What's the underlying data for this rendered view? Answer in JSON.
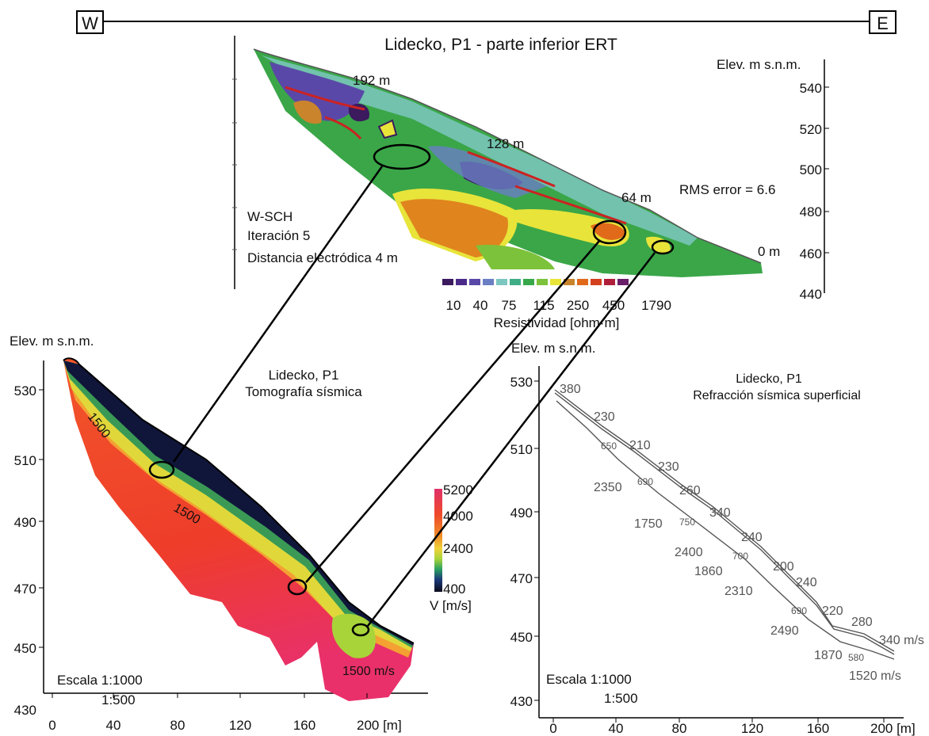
{
  "orientation": {
    "west": "W",
    "east": "E"
  },
  "ert": {
    "title": "Lidecko, P1 - parte inferior   ERT",
    "elev_label": "Elev. m s.n.m.",
    "elev_ticks": [
      "540",
      "520",
      "500",
      "480",
      "460",
      "440"
    ],
    "distance_markers": [
      "192 m",
      "128 m",
      "64 m",
      "0 m"
    ],
    "rms": "RMS error = 6.6",
    "method": "W-SCH",
    "iteration": "Iteración 5",
    "electrode_spacing": "Distancia electródica 4 m",
    "scale_values": [
      "10",
      "40",
      "75",
      "115",
      "250",
      "450",
      "1790"
    ],
    "scale_label": "Resistividad [ohm·m]",
    "scale_colors": [
      "#3b1a5e",
      "#4b2b8a",
      "#5a48a8",
      "#6a7fc4",
      "#7cc7c0",
      "#3fae86",
      "#37a84a",
      "#7cc23a",
      "#e8e43a",
      "#c9842c",
      "#e06a1a",
      "#d4401e",
      "#b01f3a",
      "#6a1e6a"
    ]
  },
  "seismic_tomography": {
    "elev_label": "Elev. m s.n.m.",
    "title": "Lidecko, P1",
    "subtitle": "Tomografía sísmica",
    "y_ticks": [
      "530",
      "510",
      "490",
      "470",
      "450",
      "430"
    ],
    "x_ticks": [
      "0",
      "40",
      "80",
      "120",
      "160",
      "200 [m]"
    ],
    "contour_labels": [
      "1500",
      "1500",
      "1500 m/s"
    ],
    "colorbar_values": [
      "5200",
      "4000",
      "2400",
      "400"
    ],
    "colorbar_label": "V [m/s]",
    "scale": "Escala 1:1000",
    "scale2": "1:500"
  },
  "seismic_refraction": {
    "elev_label": "Elev. m s.n.m.",
    "title": "Lidecko, P1",
    "subtitle": "Refracción sísmica superficial",
    "y_ticks": [
      "530",
      "510",
      "490",
      "470",
      "450",
      "430"
    ],
    "x_ticks": [
      "0",
      "40",
      "80",
      "120",
      "160",
      "200 [m]"
    ],
    "velocities_top": [
      "380",
      "230",
      "210",
      "230",
      "260",
      "340",
      "240",
      "200",
      "240",
      "220",
      "280",
      "340 m/s"
    ],
    "velocities_mid": [
      "650",
      "690",
      "750",
      "700",
      "690",
      "580"
    ],
    "velocities_bottom": [
      "2350",
      "1750",
      "2400",
      "1860",
      "2310",
      "2490",
      "1870",
      "1520 m/s"
    ],
    "scale": "Escala 1:1000",
    "scale2": "1:500"
  }
}
